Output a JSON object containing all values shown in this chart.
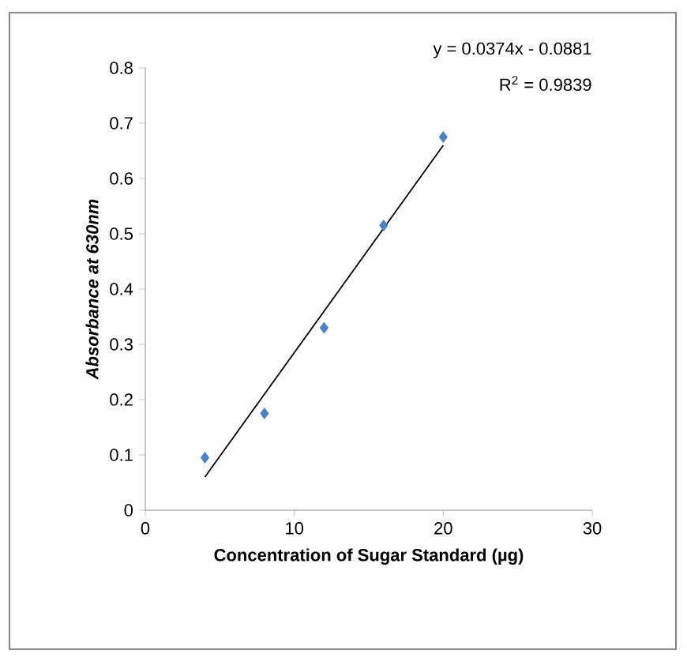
{
  "chart_data": {
    "type": "scatter",
    "xlabel": "Concentration of Sugar Standard (µg)",
    "ylabel": "Absorbance at 630nm",
    "annotations": [
      "y = 0.0374x - 0.0881",
      "R$^{2}$ = 0.9839"
    ],
    "xlim": [
      0,
      30
    ],
    "xticks": [
      0,
      10,
      20,
      30
    ],
    "ylim": [
      0,
      0.8
    ],
    "yticks": [
      0,
      0.1,
      0.2,
      0.3,
      0.4,
      0.5,
      0.6,
      0.7,
      0.8
    ],
    "grid": false,
    "marker": "diamond",
    "series": [
      {
        "color": "#4f81bd",
        "x": [
          4,
          8,
          12,
          16,
          20
        ],
        "values": [
          0.095,
          0.175,
          0.33,
          0.515,
          0.675
        ]
      },
      {
        "type": "line",
        "color": "#000000",
        "marker": "none",
        "line_style": "solid",
        "x": [
          4,
          20
        ],
        "values": [
          0.06,
          0.66
        ]
      }
    ]
  }
}
